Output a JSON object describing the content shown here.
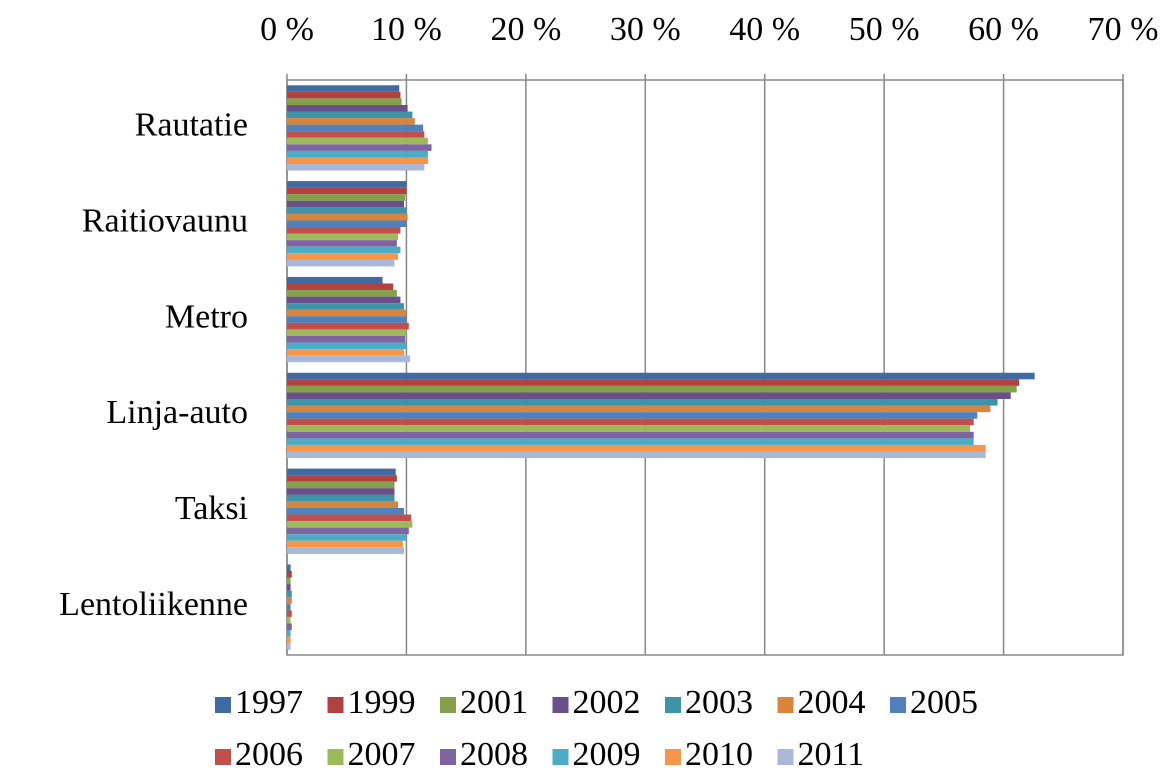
{
  "chart_data": {
    "type": "bar",
    "orientation": "horizontal",
    "categories": [
      "Rautatie",
      "Raitiovaunu",
      "Metro",
      "Linja-auto",
      "Taksi",
      "Lentoliikenne"
    ],
    "series": [
      {
        "name": "1997",
        "color": "#3f6aa3",
        "values": [
          9.4,
          10.0,
          8.0,
          62.6,
          9.1,
          0.3
        ]
      },
      {
        "name": "1999",
        "color": "#b04340",
        "values": [
          9.5,
          10.0,
          8.9,
          61.3,
          9.2,
          0.4
        ]
      },
      {
        "name": "2001",
        "color": "#84a04a",
        "values": [
          9.6,
          9.9,
          9.2,
          61.1,
          9.0,
          0.3
        ]
      },
      {
        "name": "2002",
        "color": "#6a4f8c",
        "values": [
          10.1,
          9.8,
          9.5,
          60.6,
          9.0,
          0.3
        ]
      },
      {
        "name": "2003",
        "color": "#3d93a8",
        "values": [
          10.5,
          10.0,
          9.8,
          59.5,
          9.0,
          0.4
        ]
      },
      {
        "name": "2004",
        "color": "#d9843d",
        "values": [
          10.7,
          10.1,
          10.0,
          58.9,
          9.3,
          0.4
        ]
      },
      {
        "name": "2005",
        "color": "#4f81bd",
        "values": [
          11.4,
          10.0,
          10.0,
          57.8,
          9.8,
          0.3
        ]
      },
      {
        "name": "2006",
        "color": "#c0504d",
        "values": [
          11.5,
          9.5,
          10.2,
          57.5,
          10.4,
          0.4
        ]
      },
      {
        "name": "2007",
        "color": "#9bbb59",
        "values": [
          11.8,
          9.3,
          10.0,
          57.2,
          10.5,
          0.3
        ]
      },
      {
        "name": "2008",
        "color": "#8064a2",
        "values": [
          12.1,
          9.2,
          9.9,
          57.5,
          10.2,
          0.4
        ]
      },
      {
        "name": "2009",
        "color": "#4bacc6",
        "values": [
          11.8,
          9.5,
          10.0,
          57.5,
          10.0,
          0.3
        ]
      },
      {
        "name": "2010",
        "color": "#f79646",
        "values": [
          11.8,
          9.3,
          9.8,
          58.5,
          9.7,
          0.3
        ]
      },
      {
        "name": "2011",
        "color": "#a9b8d8",
        "values": [
          11.5,
          9.0,
          10.3,
          58.5,
          9.8,
          0.3
        ]
      }
    ],
    "xlim": [
      0,
      70
    ],
    "xticks": [
      {
        "value": 0,
        "label": "0 %"
      },
      {
        "value": 10,
        "label": "10 %"
      },
      {
        "value": 20,
        "label": "20 %"
      },
      {
        "value": 30,
        "label": "30 %"
      },
      {
        "value": 40,
        "label": "40 %"
      },
      {
        "value": 50,
        "label": "50 %"
      },
      {
        "value": 60,
        "label": "60 %"
      },
      {
        "value": 70,
        "label": "70 %"
      }
    ],
    "grid": true,
    "legend": "bottom"
  }
}
